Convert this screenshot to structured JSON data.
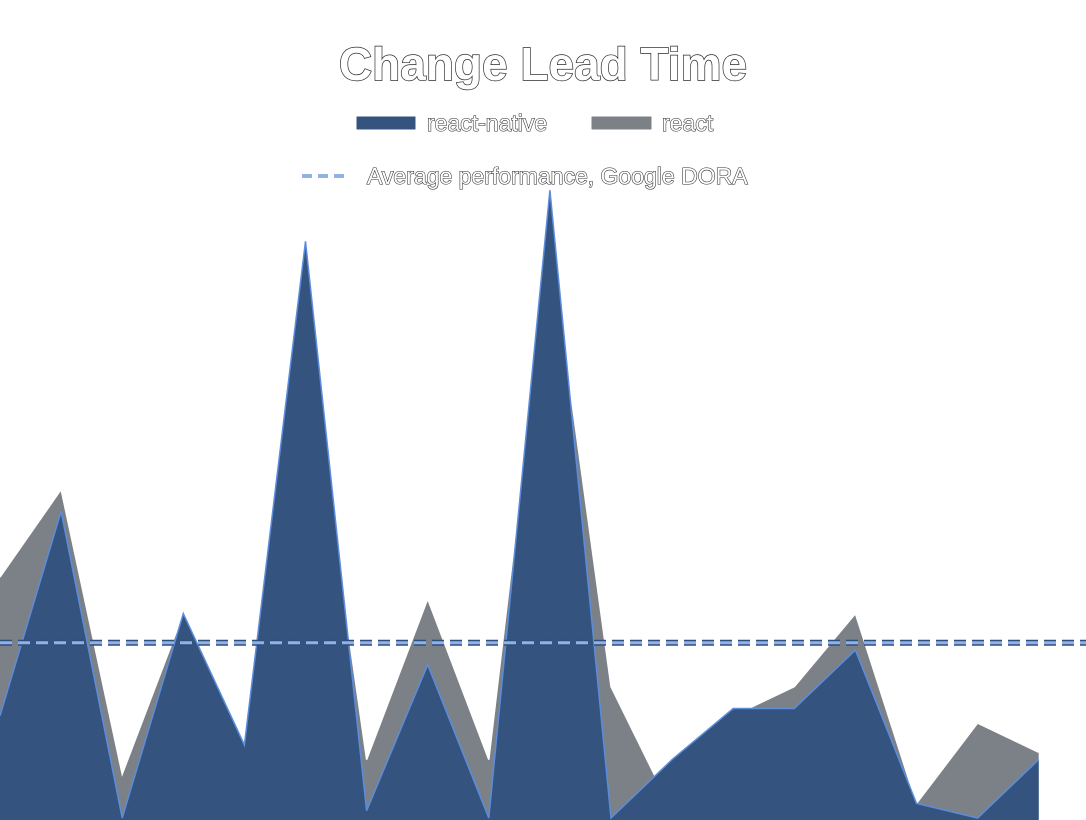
{
  "colors": {
    "react_native_fill": "#34547f",
    "react_native_line": "#5b8ddb",
    "react_fill": "#7c8087",
    "react_line": "#ffffff",
    "average_line": "#8fb3e8",
    "average_dash_dark": "#2f4f7a"
  },
  "chart_data": {
    "type": "area",
    "title": "Change Lead Time",
    "legend": {
      "placement": "top-center",
      "entries": [
        {
          "label": "react-native",
          "symbol": "filled-bar"
        },
        {
          "label": "react",
          "symbol": "filled-bar"
        },
        {
          "label": "Average performance, Google DORA",
          "symbol": "dashed-line"
        }
      ]
    },
    "x_axis_visible": false,
    "y_axis_visible": false,
    "grid": false,
    "x": [
      0,
      1,
      2,
      3,
      4,
      5,
      6,
      7,
      8,
      9,
      10,
      11,
      12,
      13,
      14,
      15,
      16,
      17
    ],
    "ylim": [
      0,
      10
    ],
    "series": [
      {
        "name": "react",
        "values": [
          3.3,
          4.5,
          0.6,
          2.8,
          0.6,
          6.7,
          0.8,
          3.0,
          0.8,
          7.9,
          1.8,
          0.1,
          1.4,
          1.8,
          2.8,
          0.2,
          1.3,
          0.9
        ]
      },
      {
        "name": "react-native",
        "values": [
          1.4,
          4.2,
          0.0,
          2.8,
          1.0,
          7.9,
          0.1,
          2.1,
          0.0,
          8.6,
          0.0,
          0.8,
          1.5,
          1.5,
          2.3,
          0.2,
          0.0,
          0.8
        ]
      },
      {
        "name": "Average performance, Google DORA",
        "values": [
          2.4,
          2.4,
          2.4,
          2.4,
          2.4,
          2.4,
          2.4,
          2.4,
          2.4,
          2.4,
          2.4,
          2.4,
          2.4,
          2.4,
          2.4,
          2.4,
          2.4,
          2.4
        ]
      }
    ]
  }
}
